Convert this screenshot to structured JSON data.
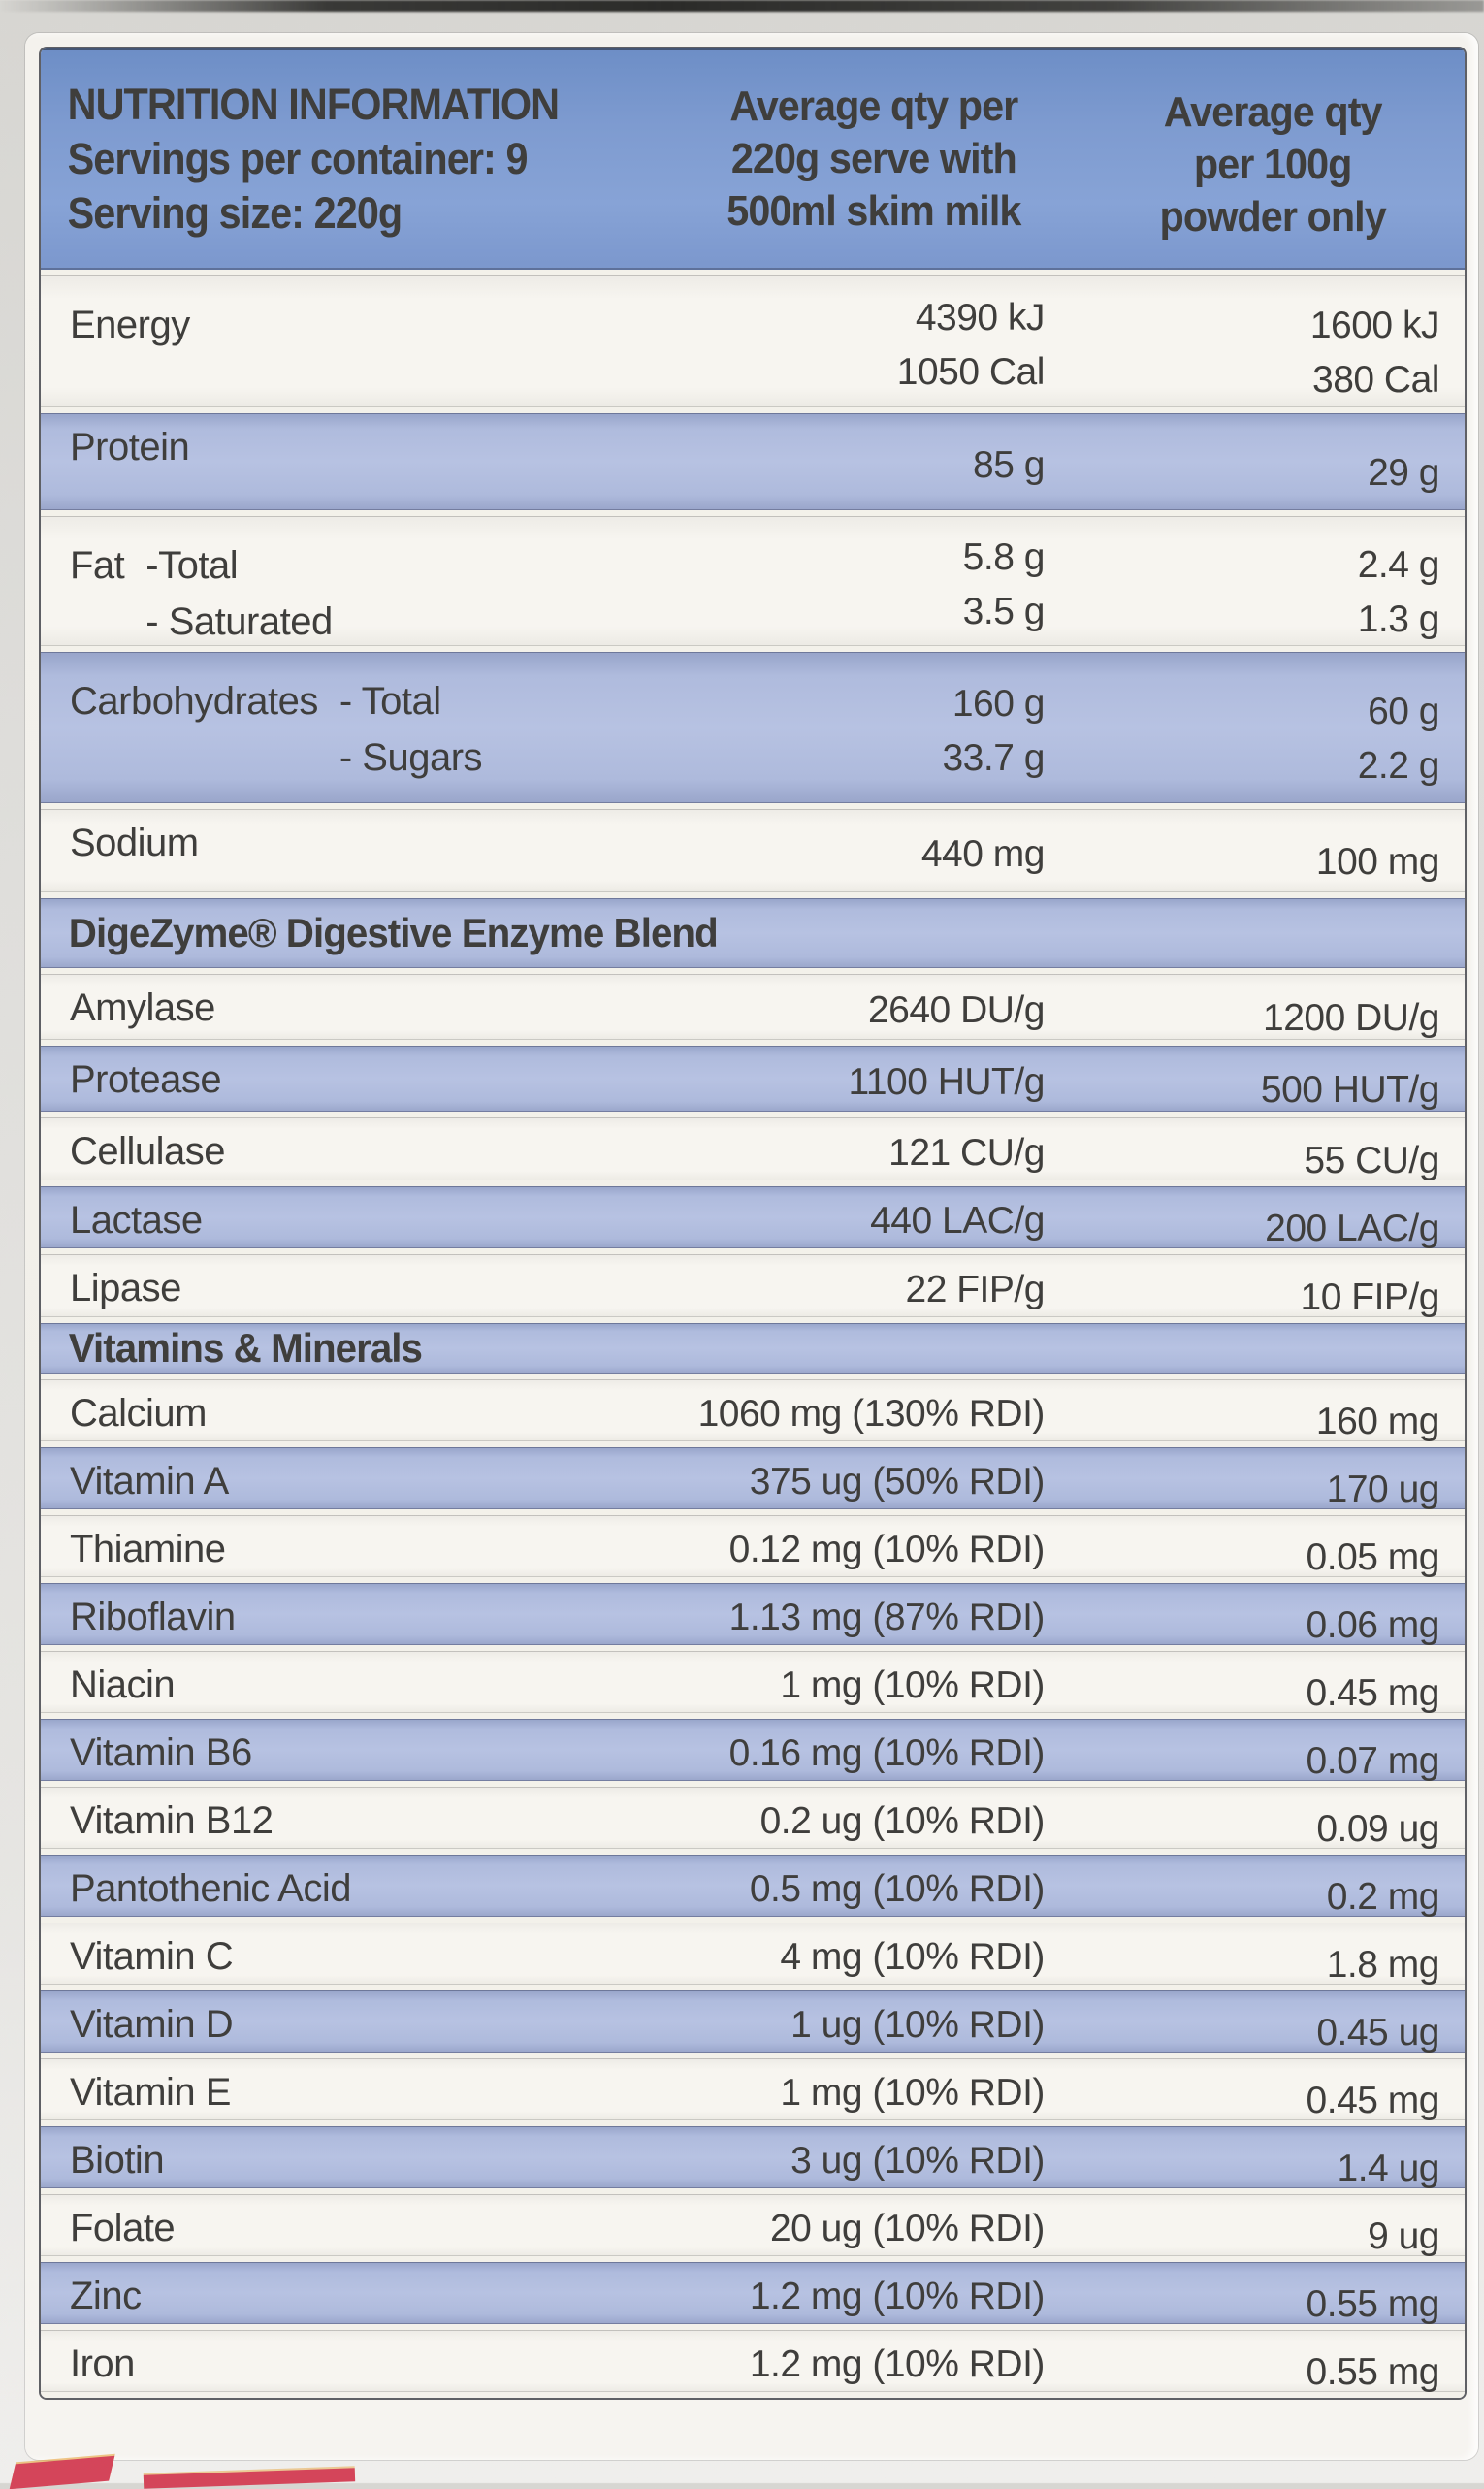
{
  "colors": {
    "header_blue": "#7e9bd0",
    "row_blue": "#b4c0e0",
    "row_white": "#f6f4ef",
    "text": "#3f3e3c",
    "table_border": "#5f6065",
    "accent_red": "#d4455a"
  },
  "table": {
    "header": {
      "title": "NUTRITION INFORMATION",
      "servings_per_container": "Servings per container: 9",
      "serving_size": "Serving size: 220g",
      "col_serve_lines": [
        "Average qty per",
        "220g serve with",
        "500ml skim milk"
      ],
      "col_100g_lines": [
        "Average qty",
        "per 100g",
        "powder only"
      ]
    },
    "rows": [
      {
        "type": "data",
        "bg": "white",
        "tall": true,
        "h": 142,
        "label": "Energy",
        "subs": [],
        "v1": [
          "4390 kJ",
          "1050 Cal"
        ],
        "v2": [
          "1600 kJ",
          "380 Cal"
        ]
      },
      {
        "type": "data",
        "bg": "blue",
        "tall": false,
        "h": 106,
        "label": "Protein",
        "subs": [],
        "v1": [
          "85 g"
        ],
        "v2": [
          "29 g"
        ]
      },
      {
        "type": "data",
        "bg": "white",
        "tall": true,
        "h": 140,
        "label": "Fat",
        "subs": [
          "-Total",
          "- Saturated"
        ],
        "v1": [
          "5.8 g",
          "3.5 g"
        ],
        "v2": [
          "2.4 g",
          "1.3 g"
        ]
      },
      {
        "type": "data",
        "bg": "blue",
        "tall": true,
        "h": 162,
        "label": "Carbohydrates",
        "subs": [
          "- Total",
          "- Sugars"
        ],
        "v1": [
          "160 g",
          "33.7 g"
        ],
        "v2": [
          "60 g",
          "2.2 g"
        ]
      },
      {
        "type": "data",
        "bg": "white",
        "tall": false,
        "h": 92,
        "label": "Sodium",
        "subs": [],
        "v1": [
          "440 mg"
        ],
        "v2": [
          "100 mg"
        ]
      },
      {
        "type": "section",
        "bg": "blue",
        "h": 78,
        "label": "DigeZyme® Digestive Enzyme Blend"
      },
      {
        "type": "data",
        "bg": "white",
        "tall": false,
        "h": 74,
        "label": "Amylase",
        "subs": [],
        "v1": [
          "2640 DU/g"
        ],
        "v2": [
          "1200 DU/g"
        ]
      },
      {
        "type": "data",
        "bg": "blue",
        "tall": false,
        "h": 74,
        "label": "Protease",
        "subs": [],
        "v1": [
          "1100 HUT/g"
        ],
        "v2": [
          "500 HUT/g"
        ]
      },
      {
        "type": "data",
        "bg": "white",
        "tall": false,
        "h": 71,
        "label": "Cellulase",
        "subs": [],
        "v1": [
          "121 CU/g"
        ],
        "v2": [
          "55 CU/g"
        ]
      },
      {
        "type": "data",
        "bg": "blue",
        "tall": false,
        "h": 70,
        "label": "Lactase",
        "subs": [],
        "v1": [
          "440 LAC/g"
        ],
        "v2": [
          "200 LAC/g"
        ]
      },
      {
        "type": "data",
        "bg": "white",
        "tall": false,
        "h": 71,
        "label": "Lipase",
        "subs": [],
        "v1": [
          "22 FIP/g"
        ],
        "v2": [
          "10 FIP/g"
        ]
      },
      {
        "type": "section",
        "bg": "blue",
        "h": 58,
        "label": "Vitamins & Minerals"
      },
      {
        "type": "data",
        "bg": "white",
        "tall": false,
        "h": 70,
        "label": "Calcium",
        "subs": [],
        "v1": [
          "1060 mg (130% RDI)"
        ],
        "v2": [
          "160 mg"
        ]
      },
      {
        "type": "data",
        "bg": "blue",
        "tall": false,
        "h": 70,
        "label": "Vitamin A",
        "subs": [],
        "v1": [
          "375 ug (50% RDI)"
        ],
        "v2": [
          "170 ug"
        ]
      },
      {
        "type": "data",
        "bg": "white",
        "tall": false,
        "h": 70,
        "label": "Thiamine",
        "subs": [],
        "v1": [
          "0.12 mg (10% RDI)"
        ],
        "v2": [
          "0.05 mg"
        ]
      },
      {
        "type": "data",
        "bg": "blue",
        "tall": false,
        "h": 70,
        "label": "Riboflavin",
        "subs": [],
        "v1": [
          "1.13 mg (87% RDI)"
        ],
        "v2": [
          "0.06 mg"
        ]
      },
      {
        "type": "data",
        "bg": "white",
        "tall": false,
        "h": 70,
        "label": "Niacin",
        "subs": [],
        "v1": [
          "1 mg (10% RDI)"
        ],
        "v2": [
          "0.45 mg"
        ]
      },
      {
        "type": "data",
        "bg": "blue",
        "tall": false,
        "h": 70,
        "label": "Vitamin B6",
        "subs": [],
        "v1": [
          "0.16 mg (10% RDI)"
        ],
        "v2": [
          "0.07 mg"
        ]
      },
      {
        "type": "data",
        "bg": "white",
        "tall": false,
        "h": 70,
        "label": "Vitamin B12",
        "subs": [],
        "v1": [
          "0.2 ug (10% RDI)"
        ],
        "v2": [
          "0.09 ug"
        ]
      },
      {
        "type": "data",
        "bg": "blue",
        "tall": false,
        "h": 70,
        "label": "Pantothenic Acid",
        "subs": [],
        "v1": [
          "0.5 mg (10% RDI)"
        ],
        "v2": [
          "0.2 mg"
        ]
      },
      {
        "type": "data",
        "bg": "white",
        "tall": false,
        "h": 70,
        "label": "Vitamin C",
        "subs": [],
        "v1": [
          "4 mg (10% RDI)"
        ],
        "v2": [
          "1.8 mg"
        ]
      },
      {
        "type": "data",
        "bg": "blue",
        "tall": false,
        "h": 70,
        "label": "Vitamin D",
        "subs": [],
        "v1": [
          "1 ug (10% RDI)"
        ],
        "v2": [
          "0.45 ug"
        ]
      },
      {
        "type": "data",
        "bg": "white",
        "tall": false,
        "h": 70,
        "label": "Vitamin E",
        "subs": [],
        "v1": [
          "1 mg (10% RDI)"
        ],
        "v2": [
          "0.45 mg"
        ]
      },
      {
        "type": "data",
        "bg": "blue",
        "tall": false,
        "h": 70,
        "label": "Biotin",
        "subs": [],
        "v1": [
          "3 ug (10% RDI)"
        ],
        "v2": [
          "1.4 ug"
        ]
      },
      {
        "type": "data",
        "bg": "white",
        "tall": false,
        "h": 70,
        "label": "Folate",
        "subs": [],
        "v1": [
          "20 ug (10% RDI)"
        ],
        "v2": [
          "9 ug"
        ]
      },
      {
        "type": "data",
        "bg": "blue",
        "tall": false,
        "h": 70,
        "label": "Zinc",
        "subs": [],
        "v1": [
          "1.2 mg (10% RDI)"
        ],
        "v2": [
          "0.55 mg"
        ]
      },
      {
        "type": "data",
        "bg": "white",
        "tall": false,
        "h": 70,
        "label": "Iron",
        "subs": [],
        "v1": [
          "1.2 mg (10% RDI)"
        ],
        "v2": [
          "0.55 mg"
        ]
      }
    ]
  }
}
